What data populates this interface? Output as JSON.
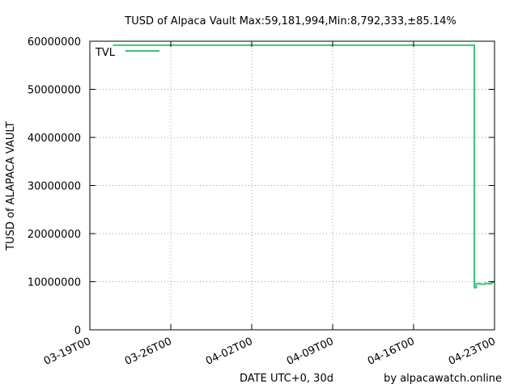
{
  "chart_data": {
    "type": "line",
    "title": "TUSD of Alpaca Vault Max:59,181,994,Min:8,792,333,±85.14%",
    "xlabel": "DATE UTC+0, 30d",
    "ylabel": "TUSD of ALAPACA VAULT",
    "credit": "by alpacawatch.online",
    "ylim": [
      0,
      60000000
    ],
    "xlim": [
      "2024-03-19",
      "2024-04-23"
    ],
    "yticks": [
      0,
      10000000,
      20000000,
      30000000,
      40000000,
      50000000,
      60000000
    ],
    "ytick_labels": [
      "0",
      "10000000",
      "20000000",
      "30000000",
      "40000000",
      "50000000",
      "60000000"
    ],
    "xticks": [
      "2024-03-19",
      "2024-03-26",
      "2024-04-02",
      "2024-04-09",
      "2024-04-16",
      "2024-04-23"
    ],
    "xtick_labels": [
      "03-19T00",
      "03-26T00",
      "04-02T00",
      "04-09T00",
      "04-16T00",
      "04-23T00"
    ],
    "grid": true,
    "legend": "top-left",
    "series": [
      {
        "name": "TVL",
        "color": "#3cc37c",
        "step": true,
        "points": [
          [
            "2024-03-21T00:00",
            59181994
          ],
          [
            "2024-04-21T06:00",
            59181994
          ],
          [
            "2024-04-21T06:00",
            8792333
          ],
          [
            "2024-04-21T10:00",
            8792333
          ],
          [
            "2024-04-21T10:00",
            9600000
          ],
          [
            "2024-04-21T18:00",
            9600000
          ],
          [
            "2024-04-21T18:00",
            9500000
          ],
          [
            "2024-04-22T04:00",
            9500000
          ],
          [
            "2024-04-22T04:00",
            9650000
          ],
          [
            "2024-04-22T12:00",
            9650000
          ],
          [
            "2024-04-22T12:00",
            9550000
          ],
          [
            "2024-04-22T18:00",
            9550000
          ],
          [
            "2024-04-22T18:00",
            9900000
          ],
          [
            "2024-04-23T00:00",
            9900000
          ]
        ]
      }
    ]
  }
}
